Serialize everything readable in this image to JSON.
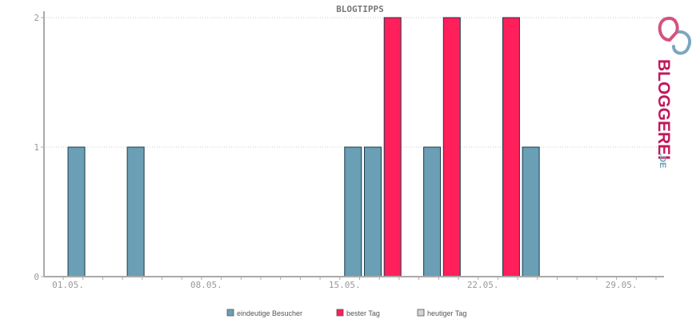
{
  "chart_data": {
    "type": "bar",
    "title": "BLOGTIPPS",
    "xlabel": "",
    "ylabel": "",
    "ylim": [
      0,
      2
    ],
    "yticks": [
      "0",
      "1",
      "2"
    ],
    "xticks": [
      "01.05.",
      "08.05.",
      "15.05.",
      "22.05.",
      "29.05."
    ],
    "grid": true,
    "legend_position": "bottom-center",
    "days": [
      1,
      2,
      3,
      4,
      5,
      6,
      7,
      8,
      9,
      10,
      11,
      12,
      13,
      14,
      15,
      16,
      17,
      18,
      19,
      20,
      21,
      22,
      23,
      24,
      25,
      26,
      27,
      28,
      29,
      30,
      31
    ],
    "series": [
      {
        "name": "eindeutige Besucher",
        "color": "#6a9fb5",
        "values": [
          1,
          0,
          0,
          1,
          0,
          0,
          0,
          0,
          0,
          0,
          0,
          0,
          0,
          0,
          1,
          1,
          0,
          0,
          1,
          0,
          0,
          0,
          0,
          1,
          0,
          0,
          0,
          0,
          0,
          0,
          0
        ]
      },
      {
        "name": "bester Tag",
        "color": "#ff1f5a",
        "values": [
          0,
          0,
          0,
          0,
          0,
          0,
          0,
          0,
          0,
          0,
          0,
          0,
          0,
          0,
          0,
          0,
          2,
          0,
          0,
          2,
          0,
          0,
          2,
          0,
          0,
          0,
          0,
          0,
          0,
          0,
          0
        ]
      },
      {
        "name": "heutiger Tag",
        "color": "#d3d3d3",
        "values": [
          0,
          0,
          0,
          0,
          0,
          0,
          0,
          0,
          0,
          0,
          0,
          0,
          0,
          0,
          0,
          0,
          0,
          0,
          0,
          0,
          0,
          0,
          0,
          0,
          0,
          0,
          0,
          0,
          0,
          0,
          0
        ]
      }
    ]
  },
  "logo": {
    "text": "BLOGGEREI",
    "suffix": ".DE",
    "color": "#c2185b",
    "suffix_color": "#6a9fb5"
  }
}
